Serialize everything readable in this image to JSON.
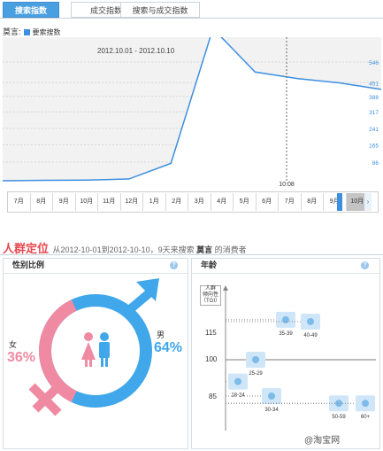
{
  "tabs": [
    {
      "label": "搜索指数",
      "active": true
    },
    {
      "label": "成交指数",
      "active": false
    },
    {
      "label": "搜索与成交指数",
      "active": false
    }
  ],
  "legend": {
    "keyword": "莫言:",
    "series_label": "要索搜数"
  },
  "date_range": "2012.10.01 - 2012.10.10",
  "chart_data": {
    "type": "line",
    "series": [
      {
        "name": "要索搜数",
        "values": [
          0,
          2,
          3,
          8,
          80,
          700,
          500,
          470,
          450,
          420
        ]
      }
    ],
    "ytick_labels": [
      "546",
      "451",
      "388",
      "317",
      "241",
      "165",
      "86"
    ],
    "y_ticks": [
      546,
      451,
      388,
      317,
      241,
      165,
      86
    ],
    "ylim": [
      0,
      660
    ],
    "x_marker": "10:08"
  },
  "timeline": {
    "months": [
      "7月",
      "8月",
      "9月",
      "10月",
      "11月",
      "12月",
      "1月",
      "2月",
      "3月",
      "4月",
      "5月",
      "6月",
      "7月",
      "8月",
      "9月",
      "10月"
    ],
    "selected_index": 15
  },
  "section": {
    "title": "人群定位",
    "subtitle_prefix": "从2012-10-01到2012-10-10，9天来搜索",
    "keyword": "莫言",
    "subtitle_suffix": "的消费者"
  },
  "gender": {
    "title": "性别比例",
    "female_label": "女",
    "female_pct": "36%",
    "female_value": 36,
    "male_label": "男",
    "male_pct": "64%",
    "male_value": 64,
    "colors": {
      "female": "#f08aa2",
      "male": "#3fa7ea"
    }
  },
  "age": {
    "title": "年龄",
    "y_axis_label_lines": [
      "人群",
      "倾向性",
      "（TGI）"
    ],
    "yticks": [
      "115",
      "100",
      "85"
    ],
    "groups": [
      {
        "label": "18-24",
        "tgi": 88
      },
      {
        "label": "25-29",
        "tgi": 100
      },
      {
        "label": "30-34",
        "tgi": 80
      },
      {
        "label": "35-39",
        "tgi": 122
      },
      {
        "label": "40-49",
        "tgi": 121
      },
      {
        "label": "50-59",
        "tgi": 76
      },
      {
        "label": "60+",
        "tgi": 76
      }
    ]
  },
  "watermark": "@淘宝网"
}
